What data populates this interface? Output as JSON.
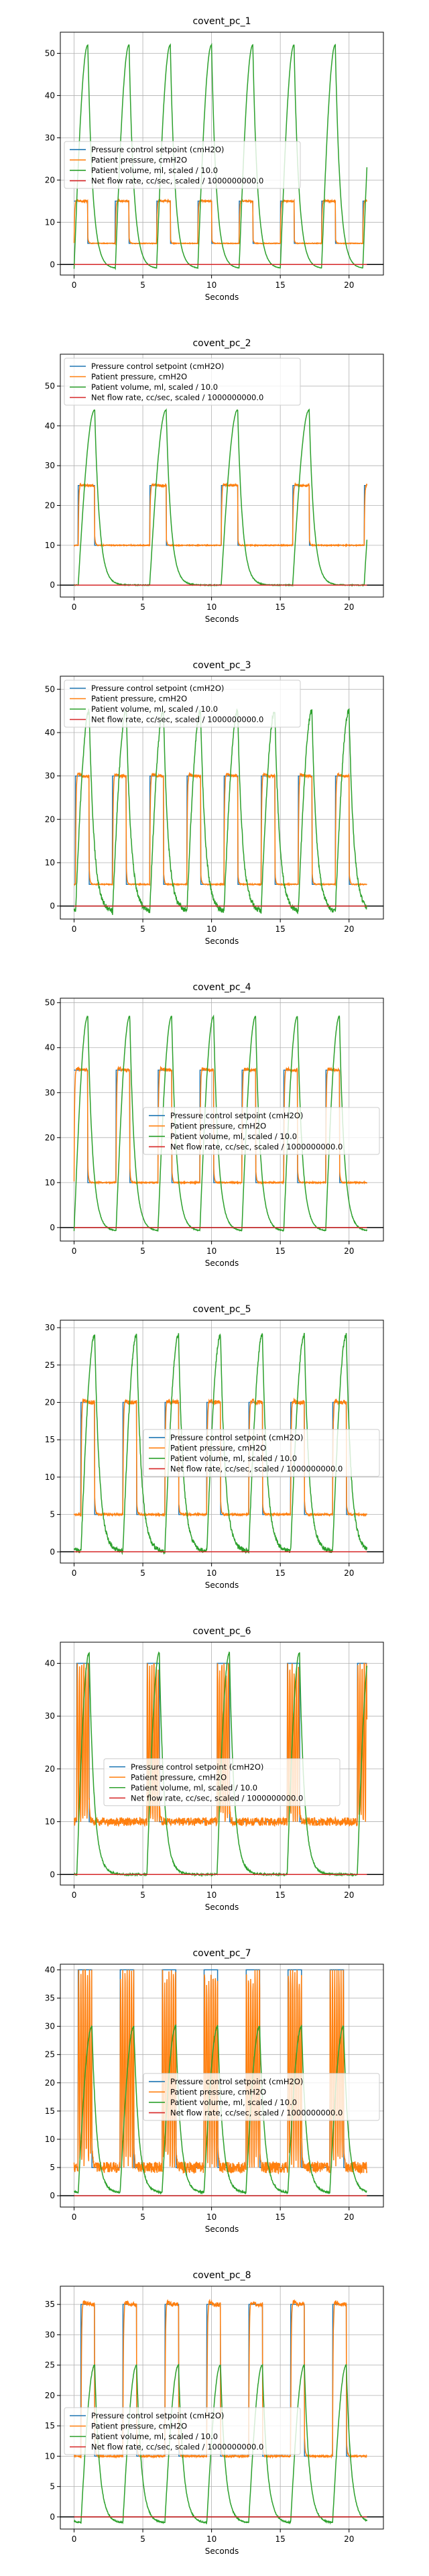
{
  "page": {
    "background": "#ffffff"
  },
  "styles": {
    "colors": {
      "setpoint": "#1f77b4",
      "pressure": "#ff7f0e",
      "volume": "#2ca02c",
      "flow": "#d62728",
      "grid": "#b0b0b0",
      "axis": "#000000",
      "zeroline": "#000000"
    }
  },
  "chart_data": [
    {
      "type": "line",
      "title": "covent_pc_1",
      "xlabel": "Seconds",
      "ylabel": "",
      "xlim": [
        -1,
        22.5
      ],
      "ylim": [
        -2.5,
        55
      ],
      "xticks": [
        0,
        5,
        10,
        15,
        20
      ],
      "yticks": [
        0,
        10,
        20,
        30,
        40,
        50
      ],
      "grid": true,
      "legend_position": "middle-left",
      "legend": [
        "Pressure control setpoint (cmH2O)",
        "Patient pressure, cmH2O",
        "Patient volume, ml, scaled / 10.0",
        "Net flow rate, cc/sec, scaled / 1000000000.0"
      ],
      "breathing": {
        "period": 3.0,
        "phase": 0.0,
        "t_end": 21.3,
        "peep": 5,
        "pip": 15,
        "insp": 1.0,
        "vol_peak": 52,
        "vol_min": -1.0,
        "noise": 0.4,
        "vol_noise": 0.1,
        "rise": "decay"
      },
      "series": [
        {
          "name": "Pressure control setpoint (cmH2O)",
          "role": "setpoint"
        },
        {
          "name": "Patient pressure, cmH2O",
          "role": "pressure"
        },
        {
          "name": "Patient volume, ml, scaled / 10.0",
          "role": "volume"
        },
        {
          "name": "Net flow rate, cc/sec, scaled / 1000000000.0",
          "role": "flow",
          "values": [
            0,
            0
          ]
        }
      ]
    },
    {
      "type": "line",
      "title": "covent_pc_2",
      "xlabel": "Seconds",
      "ylabel": "",
      "xlim": [
        -1,
        22.5
      ],
      "ylim": [
        -3,
        58
      ],
      "xticks": [
        0,
        5,
        10,
        15,
        20
      ],
      "yticks": [
        0,
        10,
        20,
        30,
        40,
        50
      ],
      "grid": true,
      "legend_position": "top-left",
      "legend": [
        "Pressure control setpoint (cmH2O)",
        "Patient pressure, cmH2O",
        "Patient volume, ml, scaled / 10.0",
        "Net flow rate, cc/sec, scaled / 1000000000.0"
      ],
      "breathing": {
        "period": 5.2,
        "phase": 0.3,
        "t_end": 21.3,
        "peep": 10,
        "pip": 25,
        "insp": 1.2,
        "vol_peak": 44,
        "vol_min": 0.0,
        "noise": 0.6,
        "vol_noise": 0.2,
        "rise": "decay"
      },
      "series": [
        {
          "name": "Pressure control setpoint (cmH2O)",
          "role": "setpoint"
        },
        {
          "name": "Patient pressure, cmH2O",
          "role": "pressure"
        },
        {
          "name": "Patient volume, ml, scaled / 10.0",
          "role": "volume"
        },
        {
          "name": "Net flow rate, cc/sec, scaled / 1000000000.0",
          "role": "flow",
          "values": [
            0,
            0
          ]
        }
      ]
    },
    {
      "type": "line",
      "title": "covent_pc_3",
      "xlabel": "Seconds",
      "ylabel": "",
      "xlim": [
        -1,
        22.5
      ],
      "ylim": [
        -3,
        53
      ],
      "xticks": [
        0,
        5,
        10,
        15,
        20
      ],
      "yticks": [
        0,
        10,
        20,
        30,
        40,
        50
      ],
      "grid": true,
      "legend_position": "top-left",
      "legend": [
        "Pressure control setpoint (cmH2O)",
        "Patient pressure, cmH2O",
        "Patient volume, ml, scaled / 10.0",
        "Net flow rate, cc/sec, scaled / 1000000000.0"
      ],
      "breathing": {
        "period": 2.7,
        "phase": 0.1,
        "t_end": 21.3,
        "peep": 5,
        "pip": 30,
        "insp": 1.0,
        "vol_peak": 45,
        "vol_min": -1.5,
        "noise": 0.6,
        "vol_noise": 1.2,
        "rise": "decay"
      },
      "series": [
        {
          "name": "Pressure control setpoint (cmH2O)",
          "role": "setpoint"
        },
        {
          "name": "Patient pressure, cmH2O",
          "role": "pressure"
        },
        {
          "name": "Patient volume, ml, scaled / 10.0",
          "role": "volume"
        },
        {
          "name": "Net flow rate, cc/sec, scaled / 1000000000.0",
          "role": "flow",
          "values": [
            0,
            0
          ]
        }
      ]
    },
    {
      "type": "line",
      "title": "covent_pc_4",
      "xlabel": "Seconds",
      "ylabel": "",
      "xlim": [
        -1,
        22.5
      ],
      "ylim": [
        -3,
        51
      ],
      "xticks": [
        0,
        5,
        10,
        15,
        20
      ],
      "yticks": [
        0,
        10,
        20,
        30,
        40,
        50
      ],
      "grid": true,
      "legend_position": "center-right",
      "legend": [
        "Pressure control setpoint (cmH2O)",
        "Patient pressure, cmH2O",
        "Patient volume, ml, scaled / 10.0",
        "Net flow rate, cc/sec, scaled / 1000000000.0"
      ],
      "breathing": {
        "period": 3.05,
        "phase": 0.0,
        "t_end": 21.3,
        "peep": 10,
        "pip": 35,
        "insp": 1.0,
        "vol_peak": 47,
        "vol_min": -0.8,
        "noise": 0.7,
        "vol_noise": 0.2,
        "rise": "decay"
      },
      "series": [
        {
          "name": "Pressure control setpoint (cmH2O)",
          "role": "setpoint"
        },
        {
          "name": "Patient pressure, cmH2O",
          "role": "pressure"
        },
        {
          "name": "Patient volume, ml, scaled / 10.0",
          "role": "volume"
        },
        {
          "name": "Net flow rate, cc/sec, scaled / 1000000000.0",
          "role": "flow",
          "values": [
            0,
            0
          ]
        }
      ]
    },
    {
      "type": "line",
      "title": "covent_pc_5",
      "xlabel": "Seconds",
      "ylabel": "",
      "xlim": [
        -1,
        22.5
      ],
      "ylim": [
        -1.5,
        31
      ],
      "xticks": [
        0,
        5,
        10,
        15,
        20
      ],
      "yticks": [
        0,
        5,
        10,
        15,
        20,
        25,
        30
      ],
      "grid": true,
      "legend_position": "center-right",
      "legend": [
        "Pressure control setpoint (cmH2O)",
        "Patient pressure, cmH2O",
        "Patient volume, ml, scaled / 10.0",
        "Net flow rate, cc/sec, scaled / 1000000000.0"
      ],
      "breathing": {
        "period": 3.05,
        "phase": 0.5,
        "t_end": 21.3,
        "peep": 5,
        "pip": 20,
        "insp": 1.0,
        "vol_peak": 29,
        "vol_min": 0.0,
        "noise": 0.6,
        "vol_noise": 0.6,
        "rise": "decay"
      },
      "series": [
        {
          "name": "Pressure control setpoint (cmH2O)",
          "role": "setpoint"
        },
        {
          "name": "Patient pressure, cmH2O",
          "role": "pressure"
        },
        {
          "name": "Patient volume, ml, scaled / 10.0",
          "role": "volume"
        },
        {
          "name": "Net flow rate, cc/sec, scaled / 1000000000.0",
          "role": "flow",
          "values": [
            0,
            0
          ]
        }
      ]
    },
    {
      "type": "line",
      "title": "covent_pc_6",
      "xlabel": "Seconds",
      "ylabel": "",
      "xlim": [
        -1,
        22.5
      ],
      "ylim": [
        -2,
        44
      ],
      "xticks": [
        0,
        5,
        10,
        15,
        20
      ],
      "yticks": [
        0,
        10,
        20,
        30,
        40
      ],
      "grid": true,
      "legend_position": "center",
      "legend": [
        "Pressure control setpoint (cmH2O)",
        "Patient pressure, cmH2O",
        "Patient volume, ml, scaled / 10.0",
        "Net flow rate, cc/sec, scaled / 1000000000.0"
      ],
      "breathing": {
        "period": 5.1,
        "phase": 0.2,
        "t_end": 21.3,
        "peep": 10,
        "pip": 40,
        "insp": 0.9,
        "vol_peak": 42,
        "vol_min": 0.0,
        "noise": 4.0,
        "vol_noise": 0.3,
        "rise": "oscillate"
      },
      "series": [
        {
          "name": "Pressure control setpoint (cmH2O)",
          "role": "setpoint"
        },
        {
          "name": "Patient pressure, cmH2O",
          "role": "pressure"
        },
        {
          "name": "Patient volume, ml, scaled / 10.0",
          "role": "volume"
        },
        {
          "name": "Net flow rate, cc/sec, scaled / 1000000000.0",
          "role": "flow",
          "values": [
            0,
            0
          ]
        }
      ]
    },
    {
      "type": "line",
      "title": "covent_pc_7",
      "xlabel": "Seconds",
      "ylabel": "",
      "xlim": [
        -1,
        22.5
      ],
      "ylim": [
        -2,
        41
      ],
      "xticks": [
        0,
        5,
        10,
        15,
        20
      ],
      "yticks": [
        0,
        5,
        10,
        15,
        20,
        25,
        30,
        35,
        40
      ],
      "grid": true,
      "legend_position": "center-right",
      "legend": [
        "Pressure control setpoint (cmH2O)",
        "Patient pressure, cmH2O",
        "Patient volume, ml, scaled / 10.0",
        "Net flow rate, cc/sec, scaled / 1000000000.0"
      ],
      "breathing": {
        "period": 3.05,
        "phase": 0.3,
        "t_end": 21.3,
        "peep": 5,
        "pip": 40,
        "insp": 1.0,
        "vol_peak": 30,
        "vol_min": 0.5,
        "noise": 5.0,
        "vol_noise": 0.3,
        "rise": "oscillate"
      },
      "series": [
        {
          "name": "Pressure control setpoint (cmH2O)",
          "role": "setpoint"
        },
        {
          "name": "Patient pressure, cmH2O",
          "role": "pressure"
        },
        {
          "name": "Patient volume, ml, scaled / 10.0",
          "role": "volume"
        },
        {
          "name": "Net flow rate, cc/sec, scaled / 1000000000.0",
          "role": "flow",
          "values": [
            0,
            0
          ]
        }
      ]
    },
    {
      "type": "line",
      "title": "covent_pc_8",
      "xlabel": "Seconds",
      "ylabel": "",
      "xlim": [
        -1,
        22.5
      ],
      "ylim": [
        -2,
        38
      ],
      "xticks": [
        0,
        5,
        10,
        15,
        20
      ],
      "yticks": [
        0,
        5,
        10,
        15,
        20,
        25,
        30,
        35
      ],
      "grid": true,
      "legend_position": "center-left",
      "legend": [
        "Pressure control setpoint (cmH2O)",
        "Patient pressure, cmH2O",
        "Patient volume, ml, scaled / 10.0",
        "Net flow rate, cc/sec, scaled / 1000000000.0"
      ],
      "breathing": {
        "period": 3.05,
        "phase": 0.5,
        "t_end": 21.3,
        "peep": 10,
        "pip": 35,
        "insp": 1.0,
        "vol_peak": 25,
        "vol_min": -1.0,
        "noise": 0.7,
        "vol_noise": 0.2,
        "rise": "decay"
      },
      "series": [
        {
          "name": "Pressure control setpoint (cmH2O)",
          "role": "setpoint"
        },
        {
          "name": "Patient pressure, cmH2O",
          "role": "pressure"
        },
        {
          "name": "Patient volume, ml, scaled / 10.0",
          "role": "volume"
        },
        {
          "name": "Net flow rate, cc/sec, scaled / 1000000000.0",
          "role": "flow",
          "values": [
            0,
            0
          ]
        }
      ]
    }
  ]
}
